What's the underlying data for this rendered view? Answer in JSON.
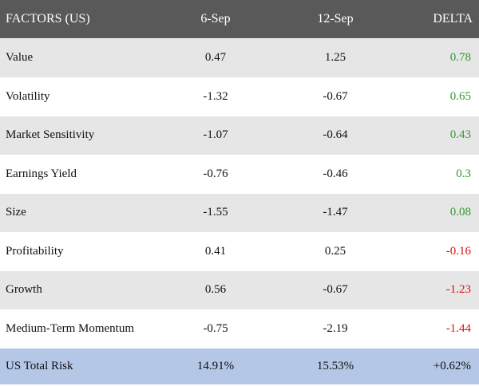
{
  "header": {
    "col1": "FACTORS (US)",
    "col2": "6-Sep",
    "col3": "12-Sep",
    "col4": "DELTA"
  },
  "rows": [
    {
      "factor": "Value",
      "sep6": "0.47",
      "sep12": "1.25",
      "delta": "0.78"
    },
    {
      "factor": "Volatility",
      "sep6": "-1.32",
      "sep12": "-0.67",
      "delta": "0.65"
    },
    {
      "factor": "Market Sensitivity",
      "sep6": "-1.07",
      "sep12": "-0.64",
      "delta": "0.43"
    },
    {
      "factor": "Earnings Yield",
      "sep6": "-0.76",
      "sep12": "-0.46",
      "delta": "0.3"
    },
    {
      "factor": "Size",
      "sep6": "-1.55",
      "sep12": "-1.47",
      "delta": "0.08"
    },
    {
      "factor": "Profitability",
      "sep6": "0.41",
      "sep12": "0.25",
      "delta": "-0.16"
    },
    {
      "factor": "Growth",
      "sep6": "0.56",
      "sep12": "-0.67",
      "delta": "-1.23"
    },
    {
      "factor": "Medium-Term Momentum",
      "sep6": "-0.75",
      "sep12": "-2.19",
      "delta": "-1.44"
    }
  ],
  "total": {
    "factor": "US Total Risk",
    "sep6": "14.91%",
    "sep12": "15.53%",
    "delta": "+0.62%"
  },
  "colors": {
    "header_bg": "#595959",
    "row_alt_bg": "#e6e6e6",
    "total_bg": "#b4c7e7",
    "positive": "#2e9b2e",
    "negative": "#e01010"
  }
}
